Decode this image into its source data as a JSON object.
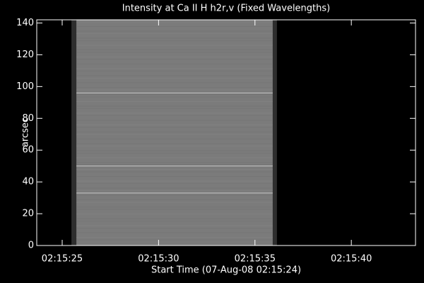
{
  "chart_data": {
    "type": "image",
    "title": "Intensity at Ca II H h2r,v (Fixed Wavelengths)",
    "xlabel": "Start Time (07-Aug-08 02:15:24)",
    "ylabel": "arcsec",
    "xlim": [
      -0.32,
      19.33
    ],
    "xticks": [
      {
        "value": 1,
        "label": "02:15:25"
      },
      {
        "value": 6,
        "label": "02:15:30"
      },
      {
        "value": 11,
        "label": "02:15:35"
      },
      {
        "value": 16,
        "label": "02:15:40"
      }
    ],
    "ylim": [
      0,
      142
    ],
    "yticks": [
      0,
      20,
      40,
      60,
      80,
      100,
      120,
      140
    ],
    "image_x": [
      1.48,
      12.14
    ],
    "bright_rows": [
      33,
      50,
      96
    ]
  }
}
